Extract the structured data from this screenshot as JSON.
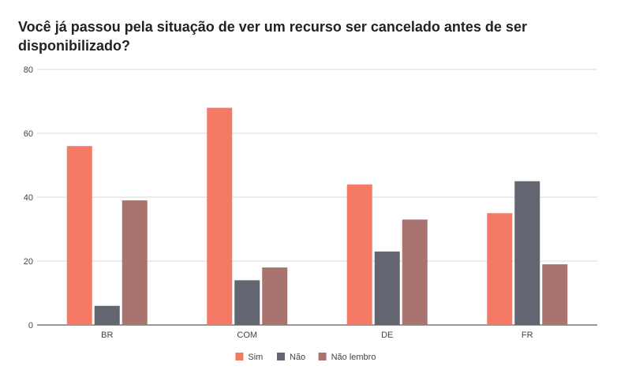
{
  "chart_data": {
    "type": "bar",
    "title": "Você já passou pela situação de ver um recurso ser cancelado antes de ser disponibilizado?",
    "categories": [
      "BR",
      "COM",
      "DE",
      "FR"
    ],
    "series": [
      {
        "name": "Sim",
        "color": "#f47a66",
        "values": [
          56,
          68,
          44,
          35
        ]
      },
      {
        "name": "Não",
        "color": "#636570",
        "values": [
          6,
          14,
          23,
          45
        ]
      },
      {
        "name": "Não lembro",
        "color": "#a97370",
        "values": [
          39,
          18,
          33,
          19
        ]
      }
    ],
    "xlabel": "",
    "ylabel": "",
    "ylim": [
      0,
      80
    ],
    "yticks": [
      0,
      20,
      40,
      60,
      80
    ],
    "grid": true,
    "legend_position": "bottom"
  }
}
